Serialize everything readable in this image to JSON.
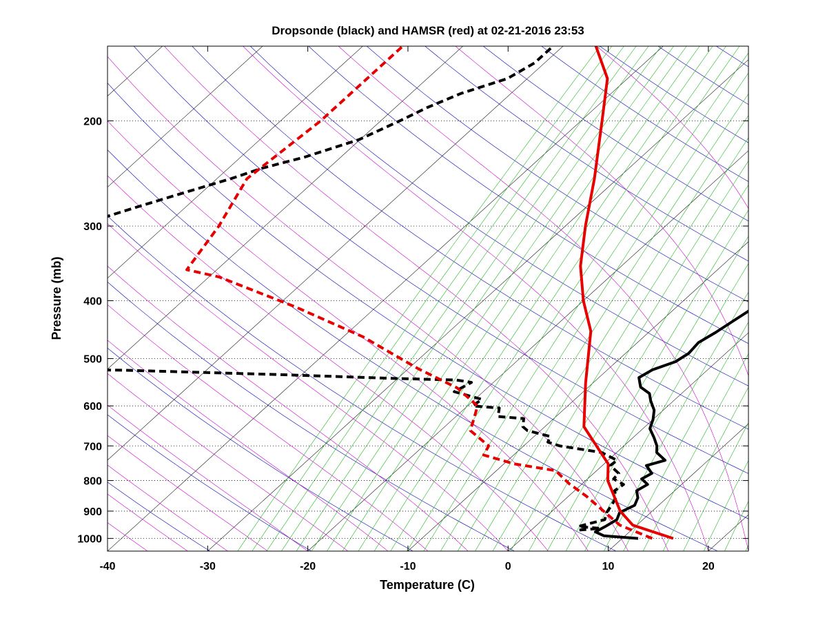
{
  "chart_data": {
    "type": "line",
    "title": "Dropsonde (black) and HAMSR (red) at 02-21-2016 23:53",
    "xlabel": "Temperature (C)",
    "ylabel": "Pressure (mb)",
    "xlim": [
      -40,
      24
    ],
    "ylim": [
      1050,
      150
    ],
    "y_scale": "log",
    "x_ticks": [
      "-40",
      "-30",
      "-20",
      "-10",
      "0",
      "10",
      "20"
    ],
    "x_tick_values": [
      -40,
      -30,
      -20,
      -10,
      0,
      10,
      20
    ],
    "y_ticks": [
      "200",
      "300",
      "400",
      "500",
      "600",
      "700",
      "800",
      "900",
      "1000"
    ],
    "y_tick_values": [
      200,
      300,
      400,
      500,
      600,
      700,
      800,
      900,
      1000
    ],
    "grid": true,
    "skew_t": true,
    "colors": {
      "dropsonde": "#000000",
      "hamsr": "#e60000",
      "isotherms": "#1a1a1a",
      "dry_adiabats": "#0000b4",
      "moist_adiabats": "#cc00cc",
      "mixing_ratio": "#22bb22"
    },
    "series": [
      {
        "name": "Dropsonde",
        "kind": "temperature",
        "color": "#000000",
        "dash": false,
        "points": [
          [
            11.6,
            1000
          ],
          [
            7.9,
            990
          ],
          [
            6.6,
            975
          ],
          [
            7.0,
            955
          ],
          [
            7.4,
            930
          ],
          [
            6.9,
            905
          ],
          [
            7.6,
            880
          ],
          [
            7.1,
            855
          ],
          [
            6.2,
            832
          ],
          [
            6.6,
            812
          ],
          [
            5.4,
            795
          ],
          [
            5.8,
            778
          ],
          [
            4.4,
            755
          ],
          [
            5.7,
            740
          ],
          [
            4.0,
            718
          ],
          [
            3.3,
            700
          ],
          [
            2.1,
            678
          ],
          [
            0.7,
            655
          ],
          [
            0.0,
            632
          ],
          [
            -0.9,
            610
          ],
          [
            -2.3,
            588
          ],
          [
            -3.2,
            572
          ],
          [
            -4.8,
            558
          ],
          [
            -6.0,
            538
          ],
          [
            -5.5,
            522
          ],
          [
            -4.1,
            506
          ],
          [
            -3.7,
            490
          ],
          [
            -3.9,
            470
          ],
          [
            -3.3,
            452
          ],
          [
            -2.8,
            432
          ],
          [
            -2.3,
            414
          ],
          [
            -1.7,
            400
          ],
          [
            -1.3,
            385
          ],
          [
            -1.2,
            370
          ],
          [
            -1.8,
            355
          ],
          [
            -1.6,
            340
          ],
          [
            -0.8,
            330
          ],
          [
            -0.4,
            318
          ],
          [
            -0.3,
            305
          ],
          [
            -0.6,
            295
          ],
          [
            -0.4,
            285
          ],
          [
            0.4,
            275
          ],
          [
            0.7,
            265
          ],
          [
            0.8,
            255
          ],
          [
            1.4,
            245
          ],
          [
            1.6,
            235
          ],
          [
            1.9,
            225
          ],
          [
            4.0,
            214
          ],
          [
            3.6,
            205
          ],
          [
            2.0,
            195
          ],
          [
            1.7,
            185
          ],
          [
            1.5,
            175
          ],
          [
            1.4,
            170
          ],
          [
            -2.0,
            162
          ],
          [
            -5.0,
            152
          ],
          [
            -7.0,
            145
          ]
        ]
      },
      {
        "name": "Dropsonde",
        "kind": "dewpoint",
        "color": "#000000",
        "dash": true,
        "points": [
          [
            4.8,
            968
          ],
          [
            6.7,
            962
          ],
          [
            4.3,
            955
          ],
          [
            6.2,
            930
          ],
          [
            5.6,
            905
          ],
          [
            5.3,
            880
          ],
          [
            4.9,
            855
          ],
          [
            4.0,
            832
          ],
          [
            4.2,
            812
          ],
          [
            2.6,
            795
          ],
          [
            2.5,
            778
          ],
          [
            0.8,
            755
          ],
          [
            0.9,
            740
          ],
          [
            -1.5,
            718
          ],
          [
            -6.4,
            700
          ],
          [
            -8.0,
            690
          ],
          [
            -8.4,
            675
          ],
          [
            -11.3,
            660
          ],
          [
            -12.2,
            650
          ],
          [
            -13.0,
            630
          ],
          [
            -15.8,
            625
          ],
          [
            -16.6,
            605
          ],
          [
            -19.5,
            600
          ],
          [
            -19.3,
            585
          ],
          [
            -22.9,
            568
          ],
          [
            -22.2,
            548
          ],
          [
            -24.0,
            543
          ],
          [
            -30.0,
            540
          ],
          [
            -42.0,
            532
          ],
          [
            -58.0,
            523
          ],
          [
            -70.0,
            520
          ]
        ]
      },
      {
        "name": "Dropsonde",
        "kind": "dewpoint-upper",
        "color": "#000000",
        "dash": true,
        "points": [
          [
            -83.5,
            375
          ],
          [
            -83.3,
            350
          ],
          [
            -80.8,
            330
          ],
          [
            -78.4,
            310
          ],
          [
            -77.9,
            295
          ],
          [
            -75.1,
            280
          ],
          [
            -72.0,
            265
          ],
          [
            -68.6,
            250
          ],
          [
            -66.6,
            240
          ],
          [
            -63.6,
            230
          ],
          [
            -60.1,
            215
          ],
          [
            -58.1,
            200
          ],
          [
            -56.8,
            190
          ],
          [
            -55.0,
            180
          ],
          [
            -52.0,
            170
          ],
          [
            -51.0,
            160
          ],
          [
            -51.0,
            150
          ],
          [
            -51.0,
            145
          ]
        ]
      },
      {
        "name": "HAMSR",
        "kind": "temperature",
        "color": "#e60000",
        "dash": false,
        "points": [
          [
            15.1,
            1000
          ],
          [
            9.6,
            950
          ],
          [
            6.8,
            900
          ],
          [
            2.2,
            800
          ],
          [
            0.4,
            750
          ],
          [
            -6.1,
            650
          ],
          [
            -10.7,
            550
          ],
          [
            -15.9,
            450
          ],
          [
            -20.0,
            400
          ],
          [
            -24.1,
            350
          ],
          [
            -28.0,
            300
          ],
          [
            -32.3,
            250
          ],
          [
            -37.9,
            200
          ],
          [
            -42.0,
            170
          ],
          [
            -48.0,
            145
          ]
        ]
      },
      {
        "name": "HAMSR",
        "kind": "dewpoint",
        "color": "#e60000",
        "dash": true,
        "points": [
          [
            13.0,
            1000
          ],
          [
            8.3,
            950
          ],
          [
            1.8,
            850
          ],
          [
            -1.3,
            810
          ],
          [
            -4.1,
            770
          ],
          [
            -9.0,
            750
          ],
          [
            -13.0,
            725
          ],
          [
            -13.5,
            700
          ],
          [
            -17.0,
            660
          ],
          [
            -19.0,
            600
          ],
          [
            -23.0,
            560
          ],
          [
            -29.0,
            520
          ],
          [
            -38.0,
            460
          ],
          [
            -48.0,
            410
          ],
          [
            -59.0,
            365
          ],
          [
            -63.0,
            355
          ],
          [
            -64.6,
            300
          ],
          [
            -67.0,
            250
          ],
          [
            -66.0,
            200
          ],
          [
            -66.0,
            170
          ],
          [
            -66.0,
            145
          ]
        ]
      }
    ]
  }
}
